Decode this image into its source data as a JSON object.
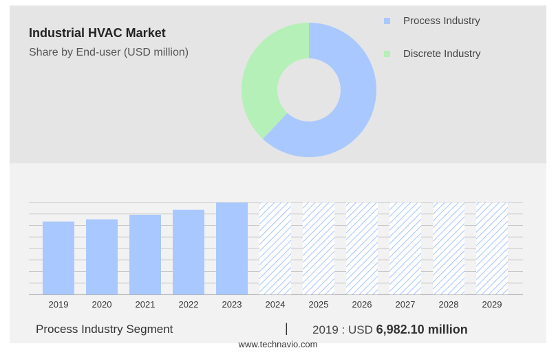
{
  "chart_data": [
    {
      "type": "pie",
      "title": "Industrial HVAC Market",
      "subtitle": "Share by End-user (USD million)",
      "legend_position": "top-right",
      "categories": [
        "Process Industry",
        "Discrete Industry"
      ],
      "values": [
        62,
        38
      ],
      "colors": [
        "#a9c8ff",
        "#b5f0b8"
      ]
    },
    {
      "type": "bar",
      "categories": [
        "2019",
        "2020",
        "2021",
        "2022",
        "2023",
        "2024",
        "2025",
        "2026",
        "2027",
        "2028",
        "2029"
      ],
      "values": [
        6982.1,
        7190,
        7620,
        8100,
        8800,
        8800,
        8800,
        8800,
        8800,
        8800,
        8800
      ],
      "forecast_from": "2024",
      "ylim": [
        0,
        8800
      ],
      "grid": true,
      "colors": {
        "actual": "#a9c8ff",
        "forecast_hatch": "#a9c8ff"
      }
    }
  ],
  "footer": {
    "segment": "Process Industry Segment",
    "divider": "|",
    "value_prefix": "2019 : USD",
    "value": "6,982.10 million",
    "site": "www.technavio.com"
  }
}
